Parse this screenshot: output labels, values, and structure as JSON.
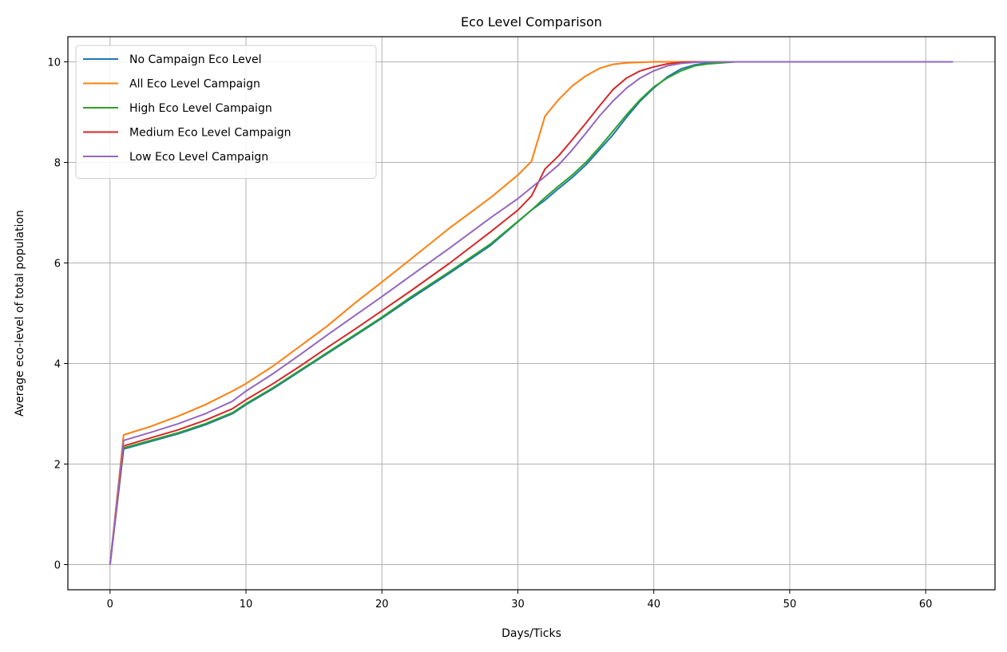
{
  "chart_data": {
    "type": "line",
    "title": "Eco Level Comparison",
    "xlabel": "Days/Ticks",
    "ylabel": "Average eco-level of total population",
    "xlim": [
      -3.1,
      65.1
    ],
    "ylim": [
      -0.5,
      10.5
    ],
    "xticks": [
      0,
      10,
      20,
      30,
      40,
      50,
      60
    ],
    "yticks": [
      0,
      2,
      4,
      6,
      8,
      10
    ],
    "grid": true,
    "legend_position": "upper-left",
    "series": [
      {
        "name": "No Campaign Eco Level",
        "color": "#1f77b4",
        "points": [
          [
            0,
            0
          ],
          [
            1,
            2.3
          ],
          [
            3,
            2.45
          ],
          [
            5,
            2.6
          ],
          [
            7,
            2.78
          ],
          [
            9,
            3.0
          ],
          [
            10,
            3.18
          ],
          [
            12,
            3.5
          ],
          [
            14,
            3.85
          ],
          [
            16,
            4.2
          ],
          [
            18,
            4.55
          ],
          [
            20,
            4.9
          ],
          [
            22,
            5.27
          ],
          [
            25,
            5.8
          ],
          [
            28,
            6.35
          ],
          [
            31,
            7.05
          ],
          [
            32,
            7.25
          ],
          [
            33,
            7.48
          ],
          [
            34,
            7.7
          ],
          [
            35,
            7.95
          ],
          [
            36,
            8.25
          ],
          [
            37,
            8.55
          ],
          [
            38,
            8.9
          ],
          [
            39,
            9.22
          ],
          [
            40,
            9.48
          ],
          [
            41,
            9.7
          ],
          [
            42,
            9.86
          ],
          [
            43,
            9.94
          ],
          [
            44,
            9.98
          ],
          [
            46,
            10.0
          ],
          [
            62,
            10.0
          ]
        ]
      },
      {
        "name": "All Eco Level Campaign",
        "color": "#ff7f0e",
        "points": [
          [
            0,
            0
          ],
          [
            1,
            2.58
          ],
          [
            3,
            2.75
          ],
          [
            5,
            2.95
          ],
          [
            7,
            3.18
          ],
          [
            9,
            3.45
          ],
          [
            10,
            3.6
          ],
          [
            12,
            3.95
          ],
          [
            14,
            4.35
          ],
          [
            16,
            4.75
          ],
          [
            18,
            5.2
          ],
          [
            20,
            5.62
          ],
          [
            22,
            6.05
          ],
          [
            25,
            6.7
          ],
          [
            28,
            7.3
          ],
          [
            30,
            7.75
          ],
          [
            31,
            8.02
          ],
          [
            32,
            8.92
          ],
          [
            33,
            9.25
          ],
          [
            34,
            9.52
          ],
          [
            35,
            9.72
          ],
          [
            36,
            9.87
          ],
          [
            37,
            9.95
          ],
          [
            38,
            9.98
          ],
          [
            40,
            10.0
          ],
          [
            62,
            10.0
          ]
        ]
      },
      {
        "name": "High Eco Level Campaign",
        "color": "#2ca02c",
        "points": [
          [
            0,
            0
          ],
          [
            1,
            2.32
          ],
          [
            3,
            2.47
          ],
          [
            5,
            2.62
          ],
          [
            7,
            2.8
          ],
          [
            9,
            3.02
          ],
          [
            10,
            3.2
          ],
          [
            12,
            3.52
          ],
          [
            14,
            3.87
          ],
          [
            16,
            4.22
          ],
          [
            18,
            4.57
          ],
          [
            20,
            4.92
          ],
          [
            22,
            5.3
          ],
          [
            25,
            5.83
          ],
          [
            28,
            6.38
          ],
          [
            31,
            7.05
          ],
          [
            32,
            7.3
          ],
          [
            33,
            7.53
          ],
          [
            34,
            7.75
          ],
          [
            35,
            8.0
          ],
          [
            36,
            8.3
          ],
          [
            37,
            8.62
          ],
          [
            38,
            8.95
          ],
          [
            39,
            9.25
          ],
          [
            40,
            9.5
          ],
          [
            41,
            9.68
          ],
          [
            42,
            9.82
          ],
          [
            43,
            9.92
          ],
          [
            44,
            9.96
          ],
          [
            46,
            10.0
          ],
          [
            62,
            10.0
          ]
        ]
      },
      {
        "name": "Medium Eco Level Campaign",
        "color": "#d62728",
        "points": [
          [
            0,
            0
          ],
          [
            1,
            2.36
          ],
          [
            3,
            2.52
          ],
          [
            5,
            2.68
          ],
          [
            7,
            2.87
          ],
          [
            9,
            3.1
          ],
          [
            10,
            3.28
          ],
          [
            12,
            3.6
          ],
          [
            14,
            3.95
          ],
          [
            16,
            4.32
          ],
          [
            18,
            4.68
          ],
          [
            20,
            5.05
          ],
          [
            22,
            5.42
          ],
          [
            25,
            6.0
          ],
          [
            28,
            6.62
          ],
          [
            30,
            7.05
          ],
          [
            31,
            7.33
          ],
          [
            32,
            7.87
          ],
          [
            33,
            8.13
          ],
          [
            34,
            8.45
          ],
          [
            35,
            8.78
          ],
          [
            36,
            9.12
          ],
          [
            37,
            9.45
          ],
          [
            38,
            9.68
          ],
          [
            39,
            9.82
          ],
          [
            40,
            9.9
          ],
          [
            41,
            9.96
          ],
          [
            42,
            9.99
          ],
          [
            43,
            10.0
          ],
          [
            62,
            10.0
          ]
        ]
      },
      {
        "name": "Low Eco Level Campaign",
        "color": "#9467bd",
        "points": [
          [
            0,
            0
          ],
          [
            1,
            2.47
          ],
          [
            3,
            2.63
          ],
          [
            5,
            2.8
          ],
          [
            7,
            3.0
          ],
          [
            9,
            3.25
          ],
          [
            10,
            3.45
          ],
          [
            12,
            3.8
          ],
          [
            14,
            4.18
          ],
          [
            16,
            4.57
          ],
          [
            18,
            4.95
          ],
          [
            20,
            5.33
          ],
          [
            22,
            5.72
          ],
          [
            25,
            6.3
          ],
          [
            28,
            6.9
          ],
          [
            30,
            7.28
          ],
          [
            31,
            7.5
          ],
          [
            32,
            7.72
          ],
          [
            33,
            7.95
          ],
          [
            34,
            8.25
          ],
          [
            35,
            8.58
          ],
          [
            36,
            8.92
          ],
          [
            37,
            9.22
          ],
          [
            38,
            9.48
          ],
          [
            39,
            9.68
          ],
          [
            40,
            9.82
          ],
          [
            41,
            9.92
          ],
          [
            42,
            9.97
          ],
          [
            43,
            9.99
          ],
          [
            44,
            10.0
          ],
          [
            62,
            10.0
          ]
        ]
      }
    ]
  }
}
